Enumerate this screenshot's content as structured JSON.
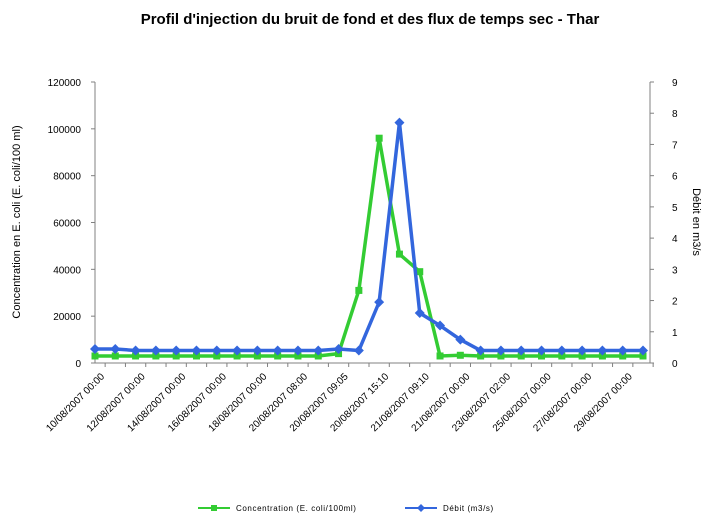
{
  "chart_data": {
    "type": "line",
    "title": "Profil d'injection du bruit de fond et des flux de temps sec - Thar",
    "y_label": "Concentration en E. coli (E. coli/100 ml)",
    "y2_label": "Débit en m3/s",
    "categories": [
      "10/08/2007 00:00",
      null,
      "12/08/2007 00:00",
      null,
      "14/08/2007 00:00",
      null,
      "16/08/2007 00:00",
      null,
      "18/08/2007 00:00",
      null,
      "20/08/2007 08:00",
      null,
      "20/08/2007 09:05",
      null,
      "20/08/2007 15:10",
      null,
      "21/08/2007 09:10",
      null,
      "21/08/2007 00:00",
      null,
      "23/08/2007 02:00",
      null,
      "25/08/2007 00:00",
      null,
      "27/08/2007 00:00",
      null,
      "29/08/2007 00:00",
      null
    ],
    "series": [
      {
        "name": "Concentration (E. coli/100ml)",
        "color": "#33cc33",
        "marker": "square",
        "values": [
          3000,
          3000,
          3000,
          3000,
          3000,
          3000,
          3000,
          3000,
          3000,
          3000,
          3000,
          3000,
          4000,
          31000,
          96000,
          46500,
          39000,
          3000,
          3300,
          3000,
          3000,
          3000,
          3000,
          3000,
          3000,
          3000,
          3000,
          3000
        ]
      },
      {
        "name": "Débit (m3/s)",
        "color": "#3366dd",
        "marker": "diamond",
        "axis": "y2",
        "values": [
          0.45,
          0.45,
          0.4,
          0.4,
          0.4,
          0.4,
          0.4,
          0.4,
          0.4,
          0.4,
          0.4,
          0.4,
          0.45,
          0.4,
          1.95,
          7.7,
          1.6,
          1.2,
          0.75,
          0.4,
          0.4,
          0.4,
          0.4,
          0.4,
          0.4,
          0.4,
          0.4,
          0.4
        ]
      }
    ],
    "ylim": [
      0,
      120000
    ],
    "yticks": [
      0,
      20000,
      40000,
      60000,
      80000,
      100000,
      120000
    ],
    "y2lim": [
      0,
      9
    ],
    "y2ticks": [
      0,
      1,
      2,
      3,
      4,
      5,
      6,
      7,
      8,
      9
    ],
    "grid": false,
    "legend": "bottom"
  }
}
